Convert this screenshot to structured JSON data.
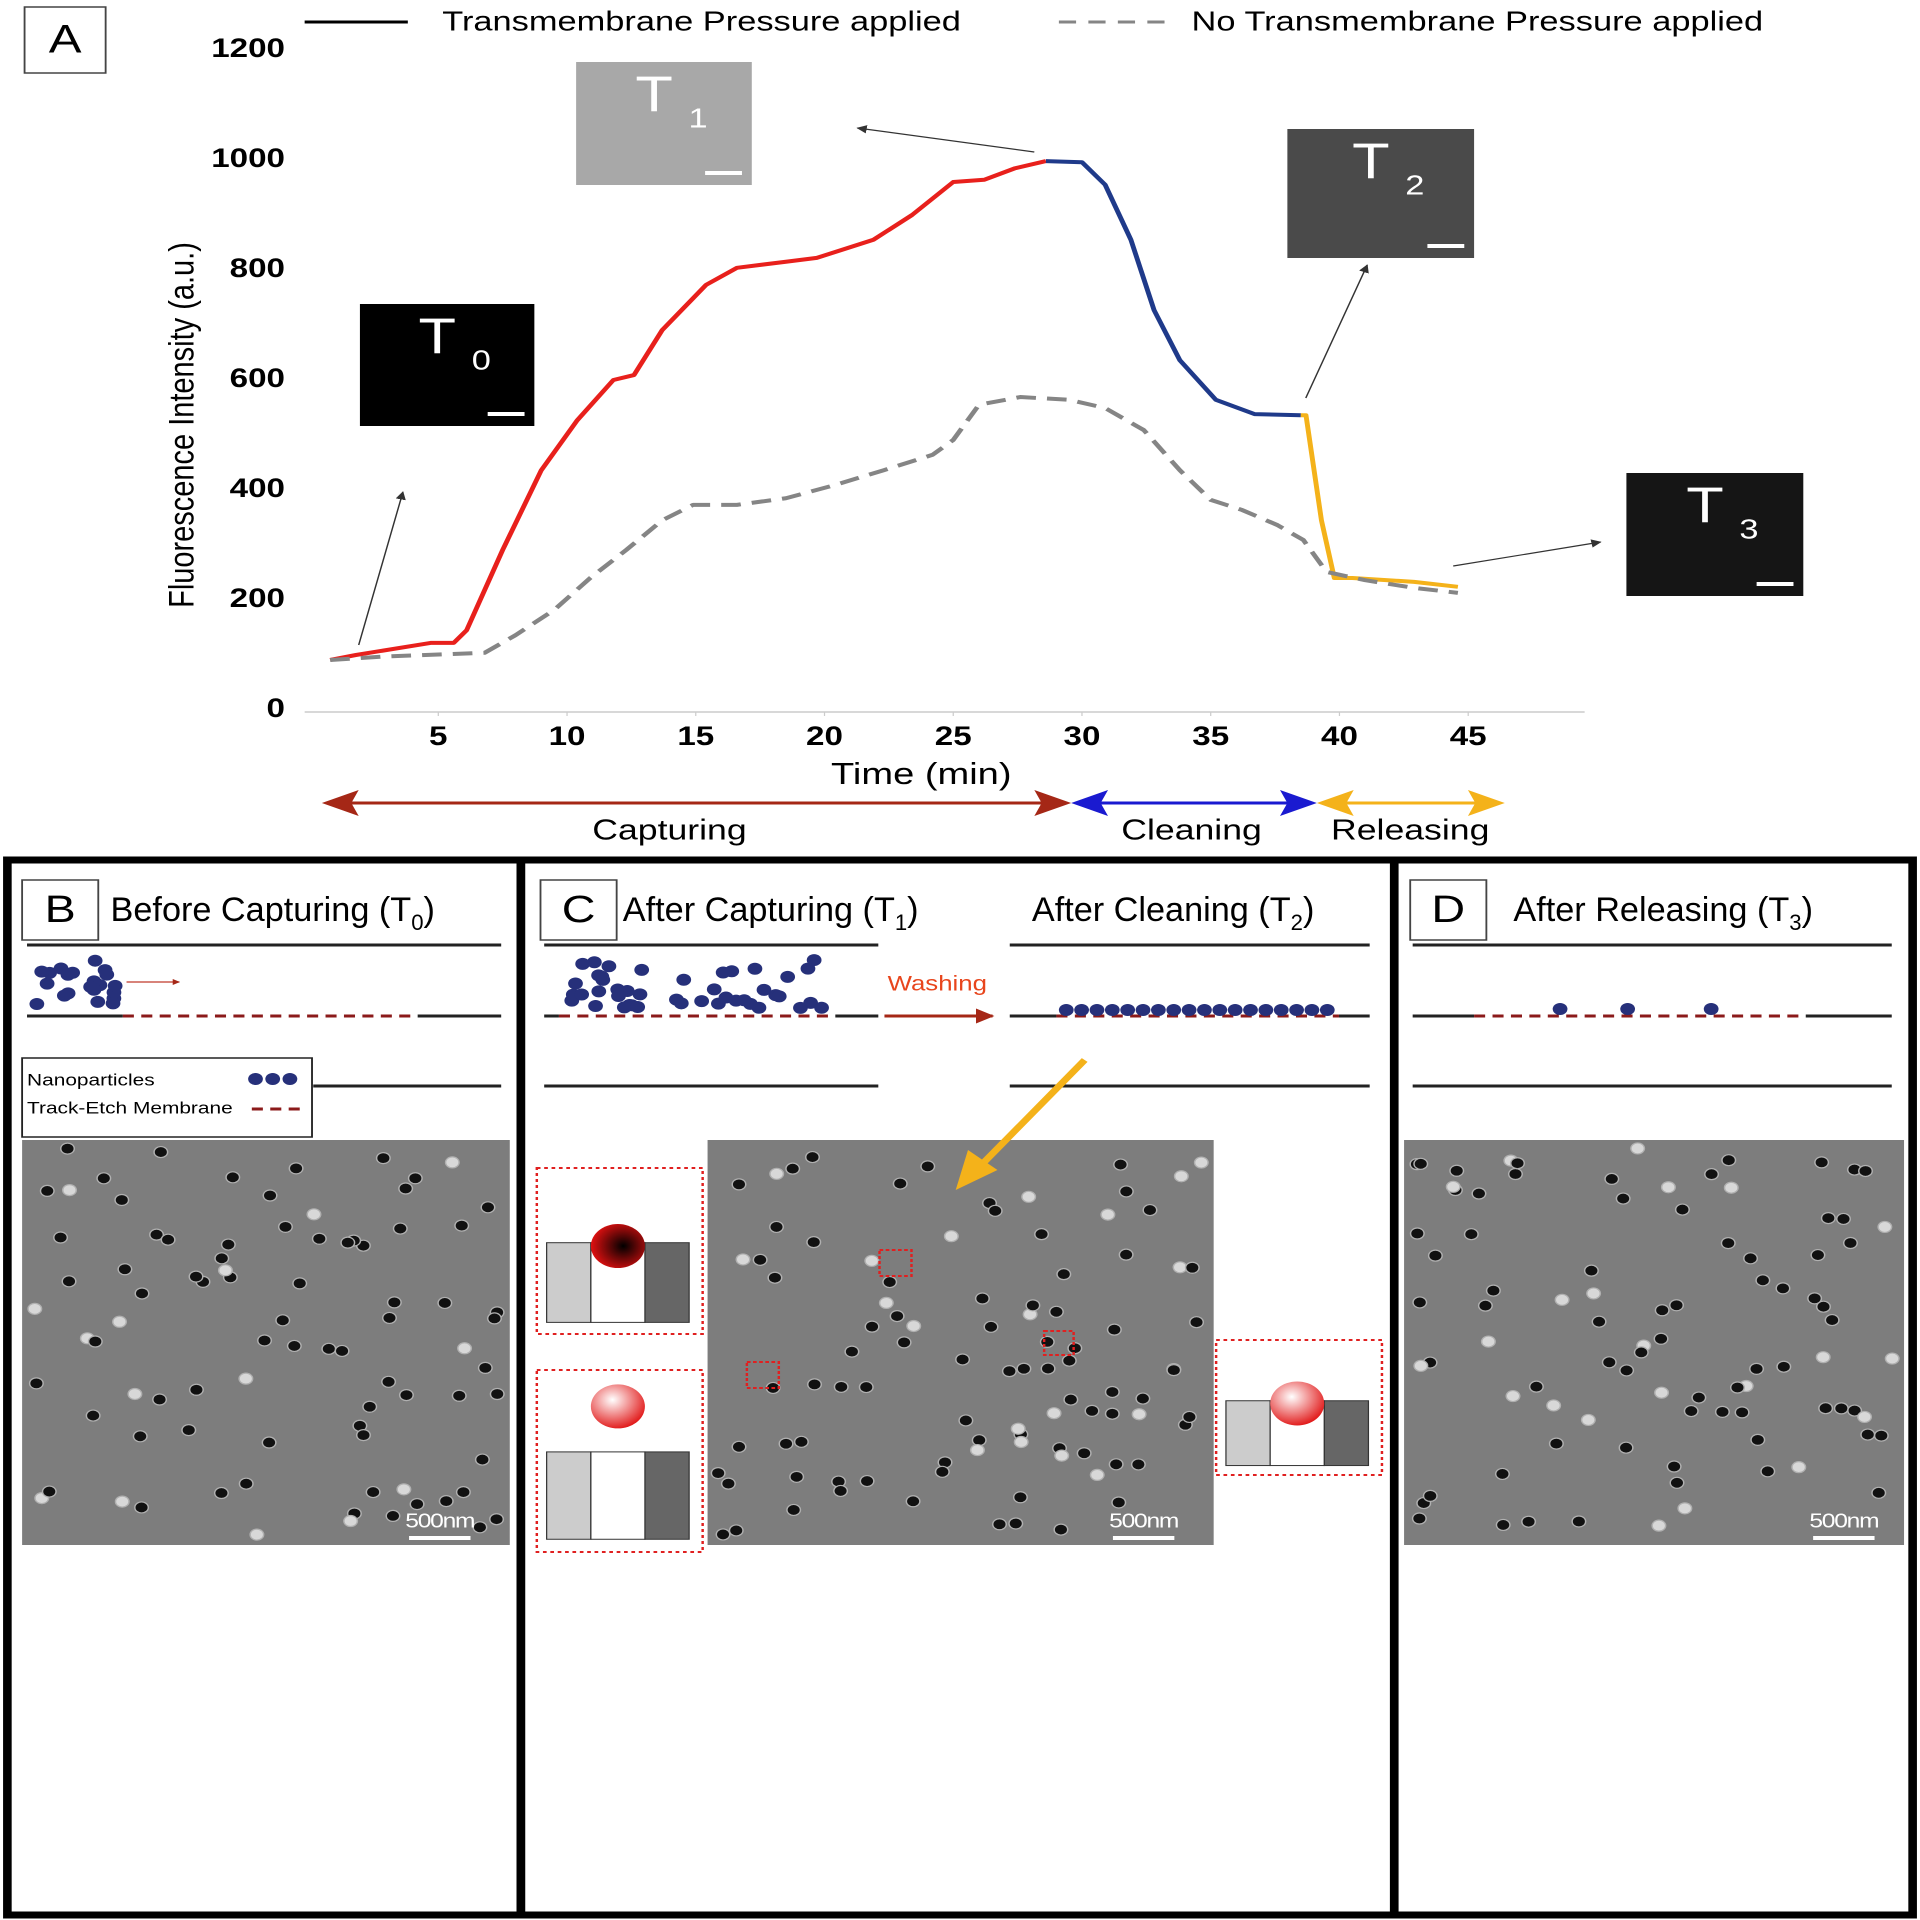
{
  "chart_data": {
    "type": "line",
    "panel": "A",
    "xlabel": "Time (min)",
    "ylabel": "Fluorescence Intensity (a.u.)",
    "xlim": [
      0,
      50
    ],
    "ylim": [
      0,
      1200
    ],
    "xticks": [
      5,
      10,
      15,
      20,
      25,
      30,
      35,
      40,
      45
    ],
    "yticks": [
      0,
      200,
      400,
      600,
      800,
      1000,
      1200
    ],
    "legend": "top",
    "series": [
      {
        "name": "Transmembrane Pressure applied",
        "color": "#000000",
        "dash": false,
        "x": [
          0.8,
          1.8,
          4.7,
          5.6,
          6.1,
          7.5,
          9.0,
          10.4,
          11.8,
          12.6,
          13.7,
          15.4,
          16.6,
          18.5,
          19.7,
          20.9,
          21.9,
          23.4,
          25.0,
          26.2,
          27.4,
          28.6,
          30.0,
          30.9,
          31.9,
          32.8,
          33.8,
          35.2,
          36.7,
          38.5,
          38.7,
          39.3,
          39.8,
          40.5,
          42.9,
          44.6
        ],
        "values": [
          91,
          100,
          122,
          122,
          145,
          291,
          436,
          527,
          600,
          609,
          691,
          773,
          804,
          815,
          822,
          840,
          855,
          900,
          960,
          964,
          985,
          998,
          996,
          955,
          855,
          727,
          636,
          564,
          538,
          536,
          536,
          345,
          240,
          240,
          233,
          224
        ],
        "colors": [
          "#e8201c",
          "#e8201c",
          "#e8201c",
          "#e8201c",
          "#e8201c",
          "#e8201c",
          "#e8201c",
          "#e8201c",
          "#e8201c",
          "#e8201c",
          "#e8201c",
          "#e8201c",
          "#e8201c",
          "#e8201c",
          "#e8201c",
          "#e8201c",
          "#e8201c",
          "#e8201c",
          "#e8201c",
          "#e8201c",
          "#e8201c",
          "#1f3a8a",
          "#1f3a8a",
          "#1f3a8a",
          "#1f3a8a",
          "#1f3a8a",
          "#1f3a8a",
          "#1f3a8a",
          "#1f3a8a",
          "#f4b21a",
          "#f4b21a",
          "#f4b21a",
          "#f4b21a",
          "#f4b21a",
          "#f4b21a",
          "#f4b21a"
        ]
      },
      {
        "name": "No Transmembrane Pressure applied",
        "color": "#858585",
        "dash": true,
        "x": [
          0.8,
          2.8,
          6.8,
          8.0,
          9.5,
          10.9,
          12.3,
          13.7,
          14.9,
          16.6,
          18.5,
          20.4,
          22.3,
          24.2,
          25.0,
          26.0,
          27.6,
          29.5,
          30.9,
          32.4,
          33.8,
          35.0,
          36.2,
          37.6,
          38.6,
          39.5,
          41.0,
          42.9,
          44.6
        ],
        "values": [
          91,
          97,
          104,
          136,
          182,
          240,
          291,
          345,
          373,
          373,
          385,
          409,
          436,
          464,
          491,
          555,
          569,
          564,
          549,
          509,
          436,
          382,
          364,
          336,
          309,
          251,
          236,
          222,
          213
        ]
      }
    ],
    "phases": [
      {
        "label": "Capturing",
        "color": "#a52716"
      },
      {
        "label": "Cleaning",
        "color": "#1a1ad0"
      },
      {
        "label": "Releasing",
        "color": "#f4b21a"
      }
    ],
    "insets": [
      {
        "label": "T",
        "sub": "0"
      },
      {
        "label": "T",
        "sub": "1"
      },
      {
        "label": "T",
        "sub": "2"
      },
      {
        "label": "T",
        "sub": "3"
      }
    ]
  },
  "panels": [
    {
      "label": "B",
      "titles": [
        {
          "text": "Before Capturing (T",
          "sub": "0",
          "end": ")"
        }
      ],
      "legend": [
        "Nanoparticles",
        "Track-Etch Membrane"
      ],
      "scale": "500nm"
    },
    {
      "label": "C",
      "titles": [
        {
          "text": "After Capturing (T",
          "sub": "1",
          "end": ")"
        },
        {
          "text": "After Cleaning (T",
          "sub": "2",
          "end": ")"
        }
      ],
      "arrow_label": "Washing",
      "scale": "500nm"
    },
    {
      "label": "D",
      "titles": [
        {
          "text": "After Releasing (T",
          "sub": "3",
          "end": ")"
        }
      ],
      "scale": "500nm"
    }
  ]
}
